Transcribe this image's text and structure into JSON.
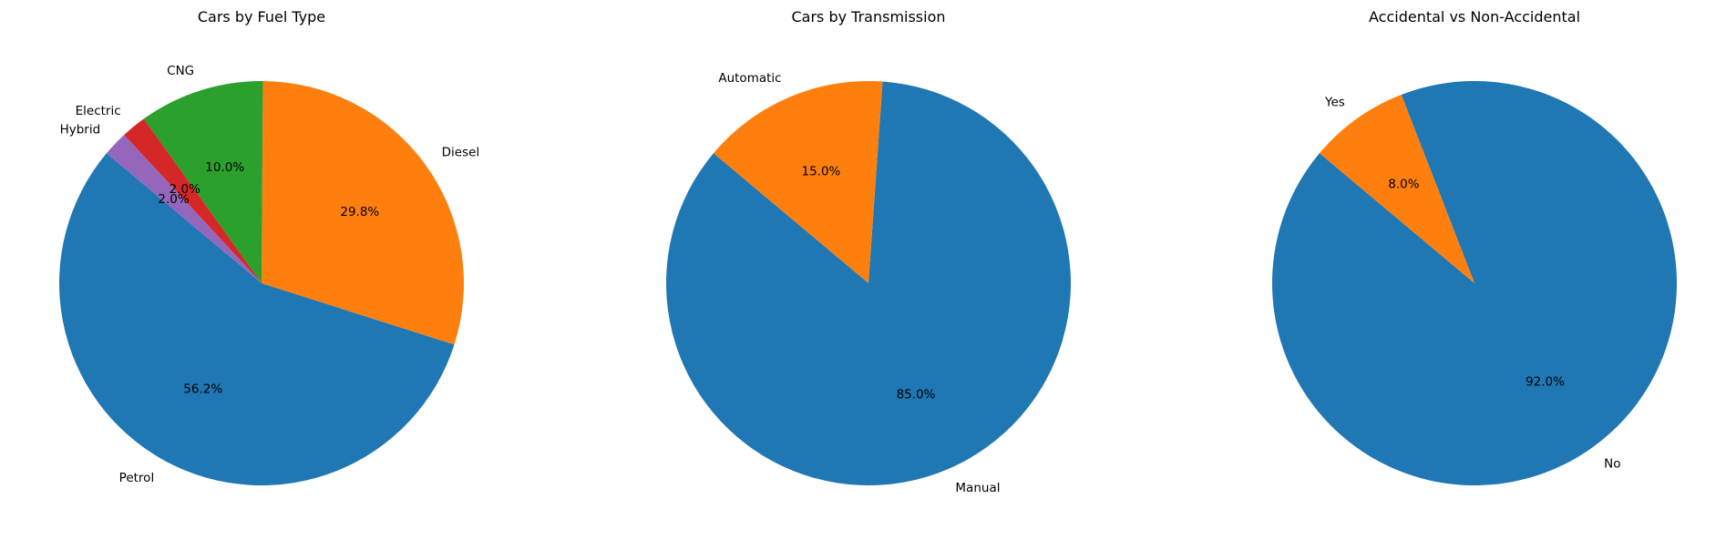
{
  "chart_data": [
    {
      "type": "pie",
      "title": "Cars by Fuel Type",
      "labels": [
        "Petrol",
        "Diesel",
        "CNG",
        "Electric",
        "Hybrid"
      ],
      "values": [
        56.2,
        29.8,
        10.0,
        2.0,
        2.0
      ],
      "pct_labels": [
        "56.2%",
        "29.8%",
        "10.0%",
        "2.0%",
        "2.0%"
      ],
      "colors": [
        "#1f77b4",
        "#ff7f0e",
        "#2ca02c",
        "#d62728",
        "#9467bd"
      ],
      "start_angle": 140,
      "direction": "counterclockwise"
    },
    {
      "type": "pie",
      "title": "Cars by Transmission",
      "labels": [
        "Manual",
        "Automatic"
      ],
      "values": [
        85.0,
        15.0
      ],
      "pct_labels": [
        "85.0%",
        "15.0%"
      ],
      "colors": [
        "#1f77b4",
        "#ff7f0e"
      ],
      "start_angle": 140,
      "direction": "counterclockwise"
    },
    {
      "type": "pie",
      "title": "Accidental vs Non-Accidental",
      "labels": [
        "No",
        "Yes"
      ],
      "values": [
        92.0,
        8.0
      ],
      "pct_labels": [
        "92.0%",
        "8.0%"
      ],
      "colors": [
        "#1f77b4",
        "#ff7f0e"
      ],
      "start_angle": 140,
      "direction": "counterclockwise"
    }
  ]
}
